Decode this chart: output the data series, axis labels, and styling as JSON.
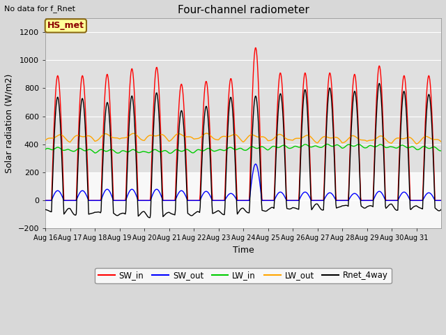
{
  "title": "Four-channel radiometer",
  "top_left_text": "No data for f_Rnet",
  "ylabel": "Solar radiation (W/m2)",
  "xlabel": "Time",
  "legend_label": "HS_met",
  "ylim": [
    -200,
    1300
  ],
  "yticks": [
    -200,
    0,
    200,
    400,
    600,
    800,
    1000,
    1200
  ],
  "background_color": "#d8d8d8",
  "plot_bg_color_upper": "#e8e8e8",
  "plot_bg_color_lower": "#ffffff",
  "grid_color": "#ffffff",
  "colors": {
    "SW_in": "#ff0000",
    "SW_out": "#0000ff",
    "LW_in": "#00cc00",
    "LW_out": "#ffa500",
    "Rnet_4way": "#000000"
  },
  "legend_box_color": "#ffff99",
  "legend_box_edge": "#8b6914",
  "x_tick_labels": [
    "Aug 16",
    "Aug 17",
    "Aug 18",
    "Aug 19",
    "Aug 20",
    "Aug 21",
    "Aug 22",
    "Aug 23",
    "Aug 24",
    "Aug 25",
    "Aug 26",
    "Aug 27",
    "Aug 28",
    "Aug 29",
    "Aug 30",
    "Aug 31"
  ],
  "figsize": [
    6.4,
    4.8
  ],
  "dpi": 100
}
